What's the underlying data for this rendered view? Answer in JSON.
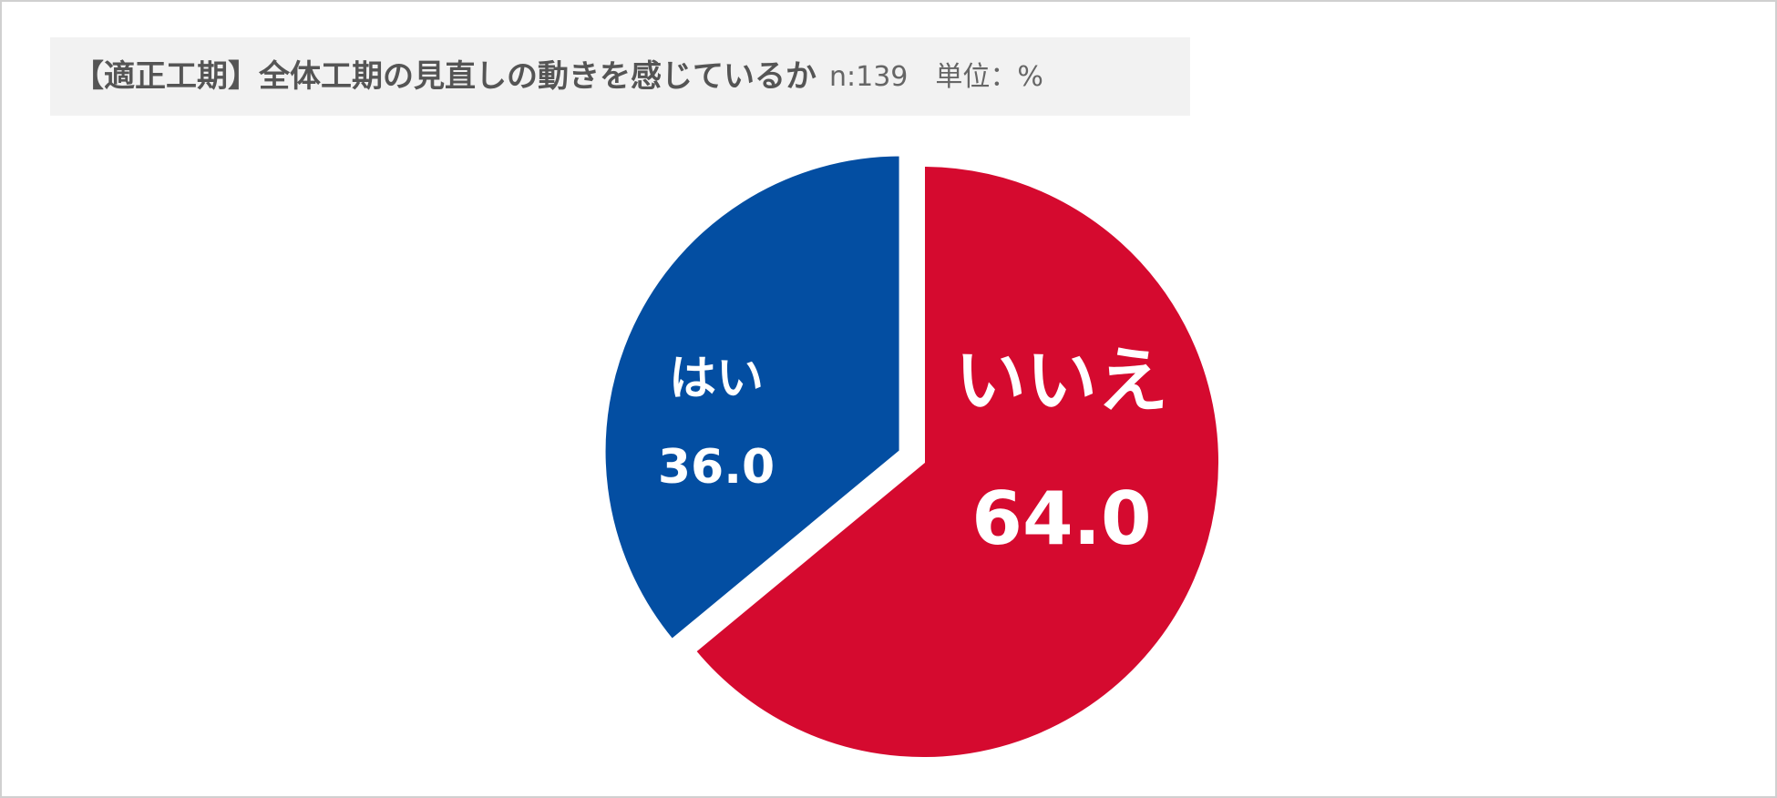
{
  "chart_data": {
    "type": "pie",
    "title": "【適正工期】全体工期の見直しの動きを感じているか",
    "subtitle": "n:139　単位：%",
    "categories": [
      "いいえ",
      "はい"
    ],
    "values": [
      64,
      36
    ],
    "value_labels": [
      "64.0",
      "36.0"
    ],
    "colors": [
      "#d50a2f",
      "#034ea2"
    ]
  }
}
